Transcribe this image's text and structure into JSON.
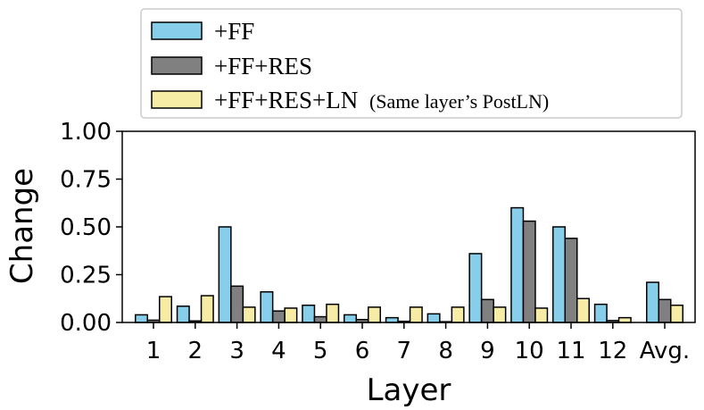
{
  "chart_data": {
    "type": "bar",
    "xlabel": "Layer",
    "ylabel": "Change",
    "ylim": [
      0,
      1.0
    ],
    "yticks": [
      "0.00",
      "0.25",
      "0.50",
      "0.75",
      "1.00"
    ],
    "categories": [
      "1",
      "2",
      "3",
      "4",
      "5",
      "6",
      "7",
      "8",
      "9",
      "10",
      "11",
      "12",
      "Avg."
    ],
    "legend_position": "top",
    "series": [
      {
        "name": "+FF",
        "color": "#87ceeb",
        "values": [
          0.04,
          0.085,
          0.5,
          0.16,
          0.09,
          0.04,
          0.025,
          0.045,
          0.36,
          0.6,
          0.5,
          0.095,
          0.21
        ]
      },
      {
        "name": "+FF+RES",
        "color": "#808080",
        "values": [
          0.012,
          0.008,
          0.19,
          0.06,
          0.03,
          0.015,
          0.006,
          0.004,
          0.12,
          0.53,
          0.44,
          0.01,
          0.12
        ]
      },
      {
        "name": "+FF+RES+LN (Same layer's PostLN)",
        "color": "#f7eca6",
        "values": [
          0.135,
          0.14,
          0.08,
          0.075,
          0.095,
          0.08,
          0.08,
          0.08,
          0.08,
          0.075,
          0.125,
          0.025,
          0.09
        ]
      }
    ]
  },
  "legend": {
    "entries": [
      {
        "text": "+FF",
        "color": "#87ceeb"
      },
      {
        "text": "+FF+RES",
        "color": "#808080"
      },
      {
        "text": "+FF+RES+LN",
        "note": "(Same layer’s PostLN)",
        "color": "#f7eca6"
      }
    ]
  }
}
